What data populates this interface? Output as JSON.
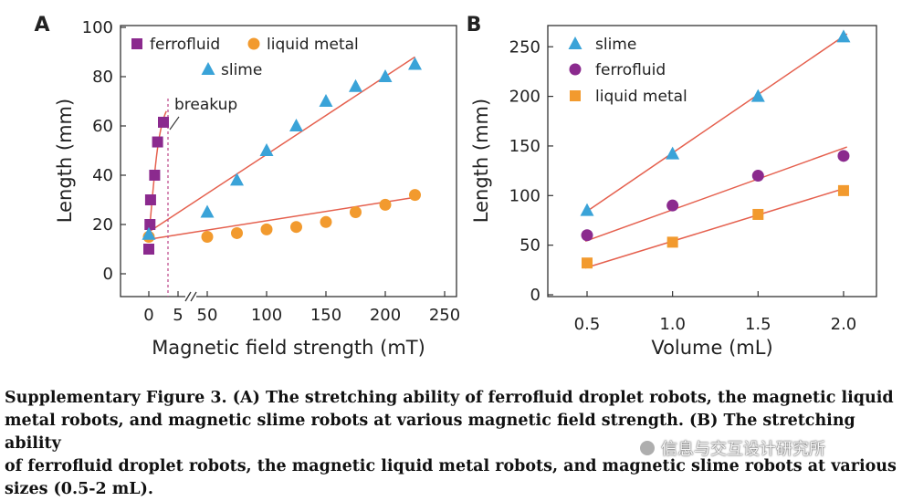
{
  "chart_data": [
    {
      "panel": "A",
      "type": "scatter",
      "xlabel": "Magnetic field strength (mT)",
      "ylabel": "Length (mm)",
      "ylim": [
        -10,
        100
      ],
      "xticks_left": [
        "0",
        "5"
      ],
      "xticks_right": [
        "50",
        "100",
        "150",
        "200",
        "250"
      ],
      "yticks": [
        "0",
        "20",
        "40",
        "60",
        "80",
        "100"
      ],
      "legend": [
        "ferrofluid",
        "liquid metal",
        "slime"
      ],
      "annotation": "breakup",
      "series": [
        {
          "name": "ferrofluid",
          "color": "#8B2A8E",
          "marker": "square",
          "points": [
            [
              0,
              10
            ],
            [
              0.2,
              20
            ],
            [
              0.3,
              30
            ],
            [
              1.0,
              40
            ],
            [
              1.5,
              53.5
            ],
            [
              2.5,
              61.5
            ]
          ]
        },
        {
          "name": "liquid metal",
          "color": "#F29A2E",
          "marker": "circle",
          "points": [
            [
              0,
              15
            ],
            [
              50,
              15
            ],
            [
              75,
              16.5
            ],
            [
              100,
              18
            ],
            [
              125,
              19
            ],
            [
              150,
              21
            ],
            [
              175,
              25
            ],
            [
              200,
              28
            ],
            [
              225,
              32
            ]
          ]
        },
        {
          "name": "slime",
          "color": "#3AA3D8",
          "marker": "triangle",
          "points": [
            [
              0,
              16
            ],
            [
              50,
              25
            ],
            [
              75,
              38
            ],
            [
              100,
              50
            ],
            [
              125,
              60
            ],
            [
              150,
              70
            ],
            [
              175,
              76
            ],
            [
              200,
              80
            ],
            [
              225,
              85
            ]
          ]
        }
      ],
      "fit_color": "#E5604E"
    },
    {
      "panel": "B",
      "type": "scatter",
      "xlabel": "Volume (mL)",
      "ylabel": "Length (mm)",
      "xlim": [
        0.25,
        2.2
      ],
      "ylim": [
        0,
        265
      ],
      "xticks": [
        "0.5",
        "1.0",
        "1.5",
        "2.0"
      ],
      "yticks": [
        "0",
        "50",
        "100",
        "150",
        "200",
        "250"
      ],
      "legend": [
        "slime",
        "ferrofluid",
        "liquid metal"
      ],
      "series": [
        {
          "name": "slime",
          "color": "#3AA3D8",
          "marker": "triangle",
          "points": [
            [
              0.5,
              85
            ],
            [
              1.0,
              142
            ],
            [
              1.5,
              200
            ],
            [
              2.0,
              260
            ]
          ]
        },
        {
          "name": "ferrofluid",
          "color": "#8B2A8E",
          "marker": "circle",
          "points": [
            [
              0.5,
              60
            ],
            [
              1.0,
              90
            ],
            [
              1.5,
              120
            ],
            [
              2.0,
              140
            ]
          ]
        },
        {
          "name": "liquid metal",
          "color": "#F29A2E",
          "marker": "square",
          "points": [
            [
              0.5,
              32
            ],
            [
              1.0,
              53
            ],
            [
              1.5,
              81
            ],
            [
              2.0,
              105
            ]
          ]
        }
      ],
      "fit_color": "#E5604E"
    }
  ],
  "caption": {
    "line1": "Supplementary Figure 3. (A) The stretching ability of ferrofluid droplet robots, the magnetic liquid",
    "line2": "metal robots, and magnetic slime robots at various magnetic field strength. (B) The stretching ability",
    "line3": "of ferrofluid droplet robots, the magnetic liquid metal robots, and magnetic slime robots at various",
    "line4": "sizes (0.5-2 mL)."
  },
  "watermark": "信息与交互设计研究所"
}
